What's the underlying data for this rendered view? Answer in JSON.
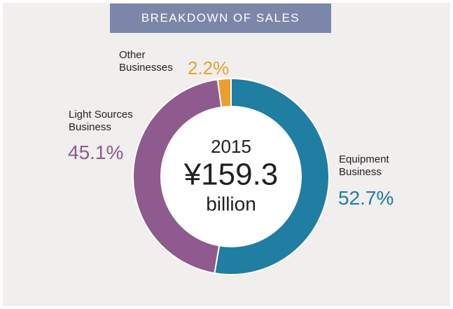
{
  "chart_data": {
    "type": "pie",
    "donut": true,
    "title": "BREAKDOWN OF SALES",
    "categories": [
      "Equipment Business",
      "Light Sources Business",
      "Other Businesses"
    ],
    "values": [
      52.7,
      45.1,
      2.2
    ],
    "value_labels": [
      "52.7%",
      "45.1%",
      "2.2%"
    ],
    "colors": [
      "#1f7ea1",
      "#8f5a8e",
      "#e8a030"
    ],
    "center_text": [
      "2015",
      "¥159.3",
      "billion"
    ]
  }
}
